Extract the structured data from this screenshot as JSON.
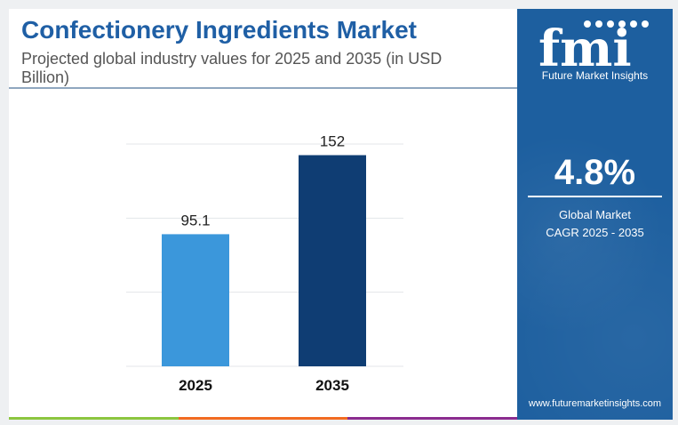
{
  "header": {
    "title": "Confectionery Ingredients Market",
    "subtitle": "Projected global industry values for 2025 and 2035 (in USD Billion)"
  },
  "brand": {
    "logo_text": "fmi",
    "tagline": "Future Market Insights",
    "website": "www.futuremarketinsights.com",
    "panel_color": "#1d5f9f"
  },
  "cagr": {
    "value": "4.8%",
    "label_line1": "Global Market",
    "label_line2": "CAGR 2025 - 2035"
  },
  "chart_data": {
    "type": "bar",
    "categories": [
      "2025",
      "2035"
    ],
    "values": [
      95.1,
      152
    ],
    "data_labels": [
      "95.1",
      "152"
    ],
    "colors": [
      "#3b97db",
      "#0f3d73"
    ],
    "ylim": [
      0,
      160
    ],
    "grid": true,
    "legend": "none"
  },
  "accent_bar_colors": [
    "#8cc63f",
    "#f26b21",
    "#8b2c8f"
  ]
}
